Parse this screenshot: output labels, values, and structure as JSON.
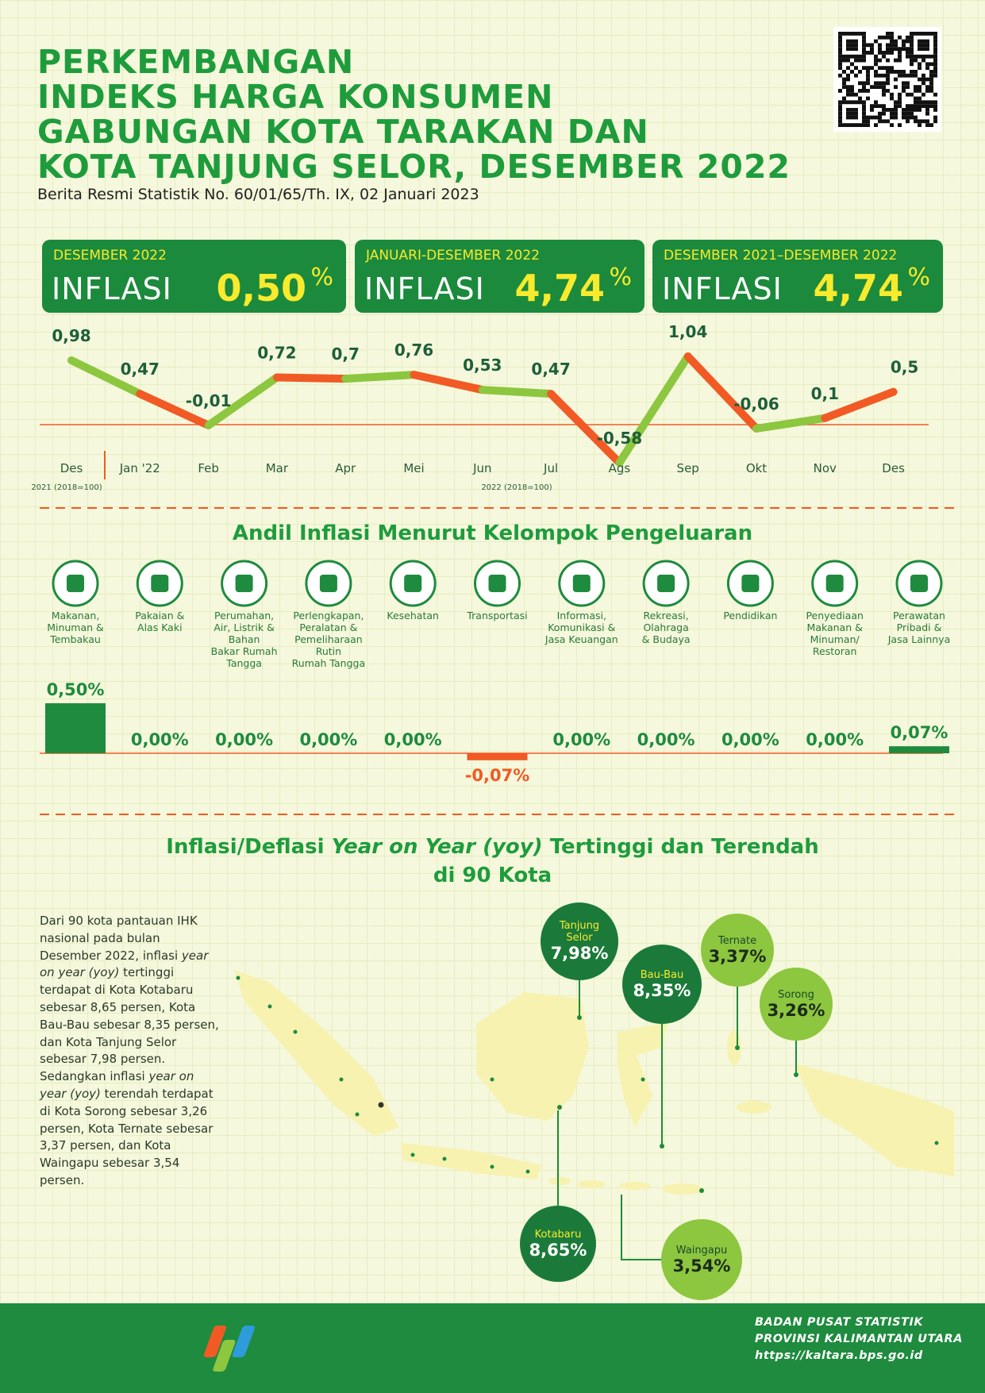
{
  "header": {
    "title_lines": [
      "PERKEMBANGAN",
      "INDEKS HARGA KONSUMEN",
      "GABUNGAN KOTA TARAKAN DAN",
      "KOTA TANJUNG SELOR, DESEMBER 2022"
    ],
    "subtitle": "Berita Resmi Statistik No. 60/01/65/Th. IX, 02 Januari 2023"
  },
  "summary": [
    {
      "period": "DESEMBER 2022",
      "label": "INFLASI",
      "value": "0,50",
      "unit": "%"
    },
    {
      "period": "JANUARI-DESEMBER 2022",
      "label": "INFLASI",
      "value": "4,74",
      "unit": "%"
    },
    {
      "period": "DESEMBER 2021–DESEMBER 2022",
      "label": "INFLASI",
      "value": "4,74",
      "unit": "%"
    }
  ],
  "chart_data": [
    {
      "type": "line",
      "categories": [
        "Des",
        "Jan '22",
        "Feb",
        "Mar",
        "Apr",
        "Mei",
        "Jun",
        "Jul",
        "Ags",
        "Sep",
        "Okt",
        "Nov",
        "Des"
      ],
      "values": [
        0.98,
        0.47,
        -0.01,
        0.72,
        0.7,
        0.76,
        0.53,
        0.47,
        -0.58,
        1.04,
        -0.06,
        0.1,
        0.5
      ],
      "value_labels": [
        "0,98",
        "0,47",
        "-0,01",
        "0,72",
        "0,7",
        "0,76",
        "0,53",
        "0,47",
        "-0,58",
        "1,04",
        "-0,06",
        "0,1",
        "0,5"
      ],
      "segment_colors": [
        "#8dc63f",
        "#f15a24"
      ],
      "period_notes": [
        "2021 (2018=100)",
        "2022 (2018=100)"
      ]
    },
    {
      "type": "bar",
      "title": "Andil Inflasi Menurut Kelompok Pengeluaran",
      "categories": [
        "Makanan,\nMinuman &\nTembakau",
        "Pakaian &\nAlas Kaki",
        "Perumahan,\nAir, Listrik &\nBahan\nBakar Rumah\nTangga",
        "Perlengkapan,\nPeralatan &\nPemeliharaan\nRutin\nRumah Tangga",
        "Kesehatan",
        "Transportasi",
        "Informasi,\nKomunikasi &\nJasa Keuangan",
        "Rekreasi,\nOlahraga\n& Budaya",
        "Pendidikan",
        "Penyediaan\nMakanan &\nMinuman/\nRestoran",
        "Perawatan\nPribadi &\nJasa Lainnya"
      ],
      "values": [
        0.5,
        0,
        0,
        0,
        0,
        -0.07,
        0,
        0,
        0,
        0,
        0.07
      ],
      "value_labels": [
        "0,50%",
        "0,00%",
        "0,00%",
        "0,00%",
        "0,00%",
        "-0,07%",
        "0,00%",
        "0,00%",
        "0,00%",
        "0,00%",
        "0,07%"
      ],
      "colors": {
        "positive": "#1e8b3e",
        "negative": "#f15a24"
      }
    }
  ],
  "map": {
    "title": [
      "Inflasi/Deflasi ",
      "Year on Year (yoy)",
      " Tertinggi dan Terendah",
      "di 90 Kota"
    ],
    "paragraph": [
      "Dari 90 kota pantauan IHK nasional pada bulan Desember 2022, inflasi ",
      "year on year (yoy)",
      " tertinggi terdapat di Kota Kotabaru sebesar 8,65 persen, Kota Bau-Bau sebesar 8,35 persen, dan Kota Tanjung Selor sebesar 7,98 persen. Sedangkan inflasi ",
      "year on year (yoy)",
      " terendah terdapat di Kota Sorong sebesar 3,26 persen, Kota Ternate sebesar 3,37 persen, dan Kota Waingapu sebesar 3,54 persen."
    ],
    "cities": [
      {
        "name": "Tanjung\nSelor",
        "value": "7,98%",
        "color": "#1b7a3a"
      },
      {
        "name": "Bau-Bau",
        "value": "8,35%",
        "color": "#1b7a3a"
      },
      {
        "name": "Ternate",
        "value": "3,37%",
        "color": "#8dc63f"
      },
      {
        "name": "Sorong",
        "value": "3,26%",
        "color": "#8dc63f"
      },
      {
        "name": "Kotabaru",
        "value": "8,65%",
        "color": "#1b7a3a"
      },
      {
        "name": "Waingapu",
        "value": "3,54%",
        "color": "#8dc63f"
      }
    ]
  },
  "footer": {
    "agency": "BADAN PUSAT STATISTIK",
    "province": "PROVINSI KALIMANTAN UTARA",
    "url": "https://kaltara.bps.go.id"
  }
}
